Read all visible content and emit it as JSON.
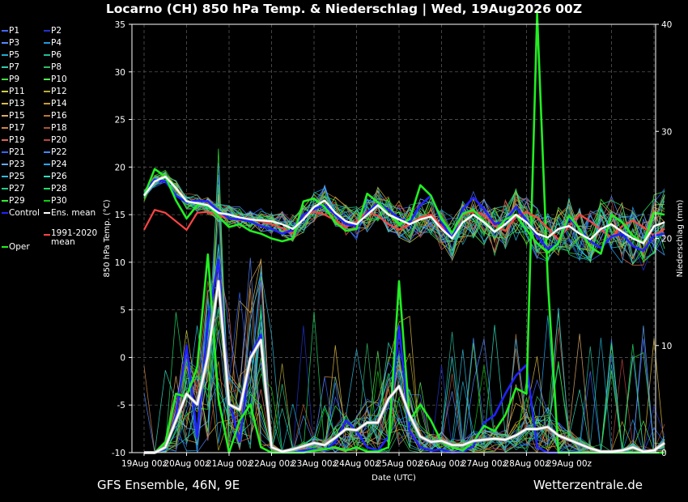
{
  "header": {
    "title": "Locarno  (CH)  850 hPa Temp. & Niederschlag | Wed, 19Aug2026 00Z"
  },
  "footer": {
    "left": "GFS Ensemble, 46N, 9E",
    "right": "Wetterzentrale.de"
  },
  "legend": [
    {
      "label": "P1",
      "color": "#4466ff"
    },
    {
      "label": "P2",
      "color": "#2233cc"
    },
    {
      "label": "P3",
      "color": "#5588ff"
    },
    {
      "label": "P4",
      "color": "#2299dd"
    },
    {
      "label": "P5",
      "color": "#22aacc"
    },
    {
      "label": "P6",
      "color": "#22bb99"
    },
    {
      "label": "P7",
      "color": "#33ccaa"
    },
    {
      "label": "P8",
      "color": "#33bb66"
    },
    {
      "label": "P9",
      "color": "#44dd44"
    },
    {
      "label": "P10",
      "color": "#55ee55"
    },
    {
      "label": "P11",
      "color": "#cccc44"
    },
    {
      "label": "P12",
      "color": "#bbaa33"
    },
    {
      "label": "P13",
      "color": "#ddbb44"
    },
    {
      "label": "P14",
      "color": "#cc9933"
    },
    {
      "label": "P15",
      "color": "#ddaa66"
    },
    {
      "label": "P16",
      "color": "#bb7733"
    },
    {
      "label": "P17",
      "color": "#cc8844"
    },
    {
      "label": "P18",
      "color": "#aa5533"
    },
    {
      "label": "P19",
      "color": "#dd6655"
    },
    {
      "label": "P20",
      "color": "#bb4444"
    },
    {
      "label": "P21",
      "color": "#3366ff"
    },
    {
      "label": "P22",
      "color": "#4488ff"
    },
    {
      "label": "P23",
      "color": "#66aaff"
    },
    {
      "label": "P24",
      "color": "#22aaff"
    },
    {
      "label": "P25",
      "color": "#33bbdd"
    },
    {
      "label": "P26",
      "color": "#33ddbb"
    },
    {
      "label": "P27",
      "color": "#22cc88"
    },
    {
      "label": "P28",
      "color": "#22dd66"
    },
    {
      "label": "P29",
      "color": "#33ee33"
    },
    {
      "label": "P30",
      "color": "#11cc11"
    },
    {
      "label": "Control",
      "color": "#2222ff"
    },
    {
      "label": "Ens. mean",
      "color": "#ffffff"
    },
    {
      "label": "Oper",
      "color": "#22ee22"
    },
    {
      "label": "1991-2020 mean",
      "color": "#ff4444"
    }
  ],
  "chart_data": {
    "type": "line",
    "xlabel": "Date (UTC)",
    "ylabel": "850 hPa Temp. (°C)",
    "y2label": "Niederschlag (mm)",
    "ylim": [
      -10,
      35
    ],
    "y2lim": [
      0,
      40
    ],
    "x_ticks": [
      "19Aug 00z",
      "20Aug 00z",
      "21Aug 00z",
      "22Aug 00z",
      "23Aug 00z",
      "24Aug 00z",
      "25Aug 00z",
      "26Aug 00z",
      "27Aug 00z",
      "28Aug 00z",
      "29Aug 00z"
    ],
    "y_ticks": [
      -10,
      -5,
      0,
      5,
      10,
      15,
      20,
      25,
      30,
      35
    ],
    "y2_ticks": [
      0,
      10,
      20,
      30,
      40
    ],
    "x_step_hours": 6,
    "grid": true,
    "temperature": {
      "ens_mean": [
        17.0,
        18.5,
        19.0,
        17.8,
        16.4,
        16.2,
        16.0,
        15.2,
        15.0,
        14.7,
        14.5,
        14.4,
        14.3,
        14.0,
        13.5,
        14.5,
        15.8,
        16.5,
        15.2,
        14.3,
        14.0,
        15.0,
        16.0,
        15.0,
        14.5,
        14.0,
        14.5,
        14.8,
        13.5,
        12.5,
        14.2,
        15.0,
        14.2,
        13.2,
        14.0,
        15.0,
        14.2,
        13.0,
        12.6,
        13.5,
        13.8,
        13.0,
        12.4,
        13.5,
        14.0,
        13.2,
        12.5,
        12.0,
        13.8,
        14.2
      ],
      "control": [
        17.2,
        18.7,
        18.5,
        17.0,
        16.3,
        16.5,
        16.4,
        15.4,
        14.6,
        14.5,
        14.3,
        13.8,
        13.5,
        13.0,
        13.4,
        15.0,
        15.6,
        16.0,
        15.0,
        14.0,
        13.8,
        15.2,
        16.2,
        15.5,
        14.6,
        14.2,
        16.0,
        17.0,
        14.2,
        12.5,
        15.6,
        16.8,
        15.6,
        14.0,
        14.3,
        15.8,
        14.4,
        12.7,
        11.4,
        12.0,
        14.6,
        13.5,
        12.2,
        11.5,
        12.7,
        13.0,
        11.7,
        11.2,
        12.8,
        13.0
      ],
      "oper": [
        17.0,
        19.8,
        19.0,
        16.5,
        14.6,
        16.0,
        16.0,
        14.8,
        13.7,
        14.0,
        13.3,
        13.0,
        12.5,
        12.2,
        12.5,
        16.4,
        16.7,
        15.8,
        14.2,
        13.3,
        13.5,
        17.2,
        16.3,
        15.1,
        14.0,
        14.5,
        18.1,
        17.0,
        14.5,
        13.1,
        15.1,
        15.5,
        14.3,
        13.2,
        14.5,
        15.0,
        13.4,
        12.0,
        11.0,
        12.0,
        14.9,
        13.5,
        11.6,
        10.9,
        15.0,
        14.2,
        12.8,
        12.0,
        15.2,
        15.0
      ],
      "clim_mean": [
        13.4,
        15.5,
        15.2,
        14.3,
        13.4,
        15.2,
        15.3,
        14.9,
        14.6,
        14.4,
        14.5,
        14.3,
        14.0,
        13.6,
        13.0,
        15.0,
        15.3,
        15.0,
        14.4,
        13.7,
        14.3,
        15.3,
        14.9,
        14.0,
        13.4,
        14.0,
        14.7,
        15.0,
        13.8,
        12.6,
        15.0,
        15.3,
        15.0,
        13.8,
        13.3,
        14.8,
        15.3,
        14.7,
        13.6,
        12.4,
        13.8,
        15.0,
        14.3,
        13.4,
        12.6,
        13.8,
        14.4,
        13.7,
        12.8,
        13.5
      ]
    },
    "precipitation": {
      "ens_mean": [
        0.0,
        0.0,
        0.5,
        3.0,
        5.5,
        4.5,
        9.0,
        16.0,
        4.5,
        4.0,
        8.8,
        10.5,
        0.5,
        0.1,
        0.3,
        0.6,
        0.9,
        0.7,
        1.4,
        2.2,
        2.1,
        2.8,
        2.8,
        5.0,
        6.2,
        3.5,
        1.5,
        1.0,
        1.1,
        0.7,
        0.7,
        1.1,
        1.2,
        1.3,
        1.2,
        1.6,
        2.2,
        2.2,
        2.4,
        1.6,
        1.2,
        0.8,
        0.4,
        0.1,
        0.1,
        0.2,
        0.5,
        0.1,
        0.2,
        0.9
      ],
      "control": [
        0.0,
        0.0,
        0.3,
        3.5,
        10.0,
        1.5,
        12.0,
        18.0,
        5.0,
        1.0,
        9.0,
        11.0,
        0.5,
        0.0,
        0.0,
        0.2,
        0.3,
        0.2,
        1.0,
        3.0,
        2.0,
        0.5,
        0.2,
        1.5,
        11.8,
        2.0,
        0.5,
        0.2,
        0.3,
        0.0,
        0.1,
        0.6,
        2.8,
        3.5,
        5.5,
        7.2,
        8.2,
        0.5,
        0.0,
        0.0,
        0.0,
        0.0,
        0.0,
        0.0,
        0.0,
        0.0,
        0.0,
        0.0,
        0.0,
        0.0
      ],
      "oper": [
        0.0,
        0.0,
        1.0,
        5.5,
        5.2,
        8.0,
        18.5,
        5.0,
        0.0,
        3.0,
        4.5,
        0.5,
        0.0,
        0.0,
        0.0,
        0.0,
        0.2,
        0.3,
        0.5,
        0.2,
        0.5,
        0.1,
        0.1,
        0.5,
        16.0,
        3.0,
        4.5,
        3.0,
        1.0,
        0.5,
        0.2,
        1.0,
        2.5,
        2.0,
        3.5,
        6.0,
        5.5,
        41.0,
        16.0,
        0.0,
        0.0,
        0.0,
        0.0,
        0.0,
        0.0,
        0.0,
        0.0,
        0.0,
        0.0,
        0.0
      ]
    }
  }
}
